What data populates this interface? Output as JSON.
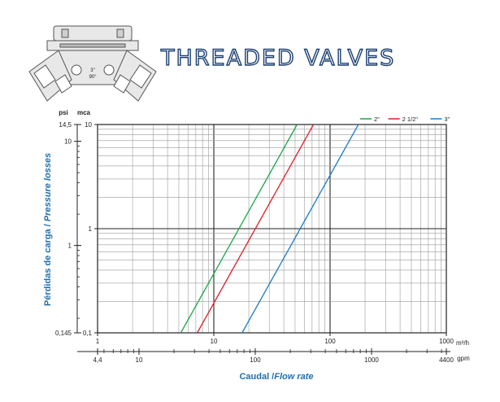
{
  "header": {
    "title": "THREADED VALVES",
    "valve_label_size": "3\"",
    "valve_label_angle": "90°"
  },
  "colors": {
    "title": "#1b3f73",
    "axis_label": "#1f6fb2",
    "grid": "#888888",
    "series_2in": "#1aa64a",
    "series_2_5in": "#e01b24",
    "series_3in": "#1f7ac4"
  },
  "chart_data": {
    "type": "line",
    "x_scale": "log",
    "y_scale": "log",
    "xlim": [
      1,
      1000
    ],
    "ylim": [
      0.1,
      10
    ],
    "grid": true,
    "legend_position": "top-right",
    "xlabel_es": "Caudal /",
    "xlabel_en": "Flow rate",
    "ylabel_es": "Pérdidas de carga /",
    "ylabel_en": "Pressure losses",
    "x_unit": "m³/h",
    "x2_unit": "gpm",
    "y_unit": "mca",
    "y2_unit": "psi",
    "x_ticks": [
      "1",
      "10",
      "100",
      "1000"
    ],
    "x2_ticks": [
      "4,4",
      "10",
      "100",
      "1000",
      "4400"
    ],
    "x2_tick_values": [
      4.4,
      10,
      100,
      1000,
      4400
    ],
    "y_ticks": [
      "0,1",
      "1",
      "10"
    ],
    "y2_ticks": [
      "0,145",
      "1",
      "10",
      "14,5"
    ],
    "y2_tick_values": [
      0.145,
      1,
      10,
      14.5
    ],
    "series": [
      {
        "name": "2\"",
        "color": "#1aa64a",
        "points": [
          [
            5.2,
            0.1
          ],
          [
            52,
            10
          ]
        ]
      },
      {
        "name": "2 1/2\"",
        "color": "#e01b24",
        "points": [
          [
            7.2,
            0.1
          ],
          [
            72,
            10
          ]
        ]
      },
      {
        "name": "3\"",
        "color": "#1f7ac4",
        "points": [
          [
            17.5,
            0.1
          ],
          [
            175,
            10
          ]
        ]
      }
    ]
  }
}
